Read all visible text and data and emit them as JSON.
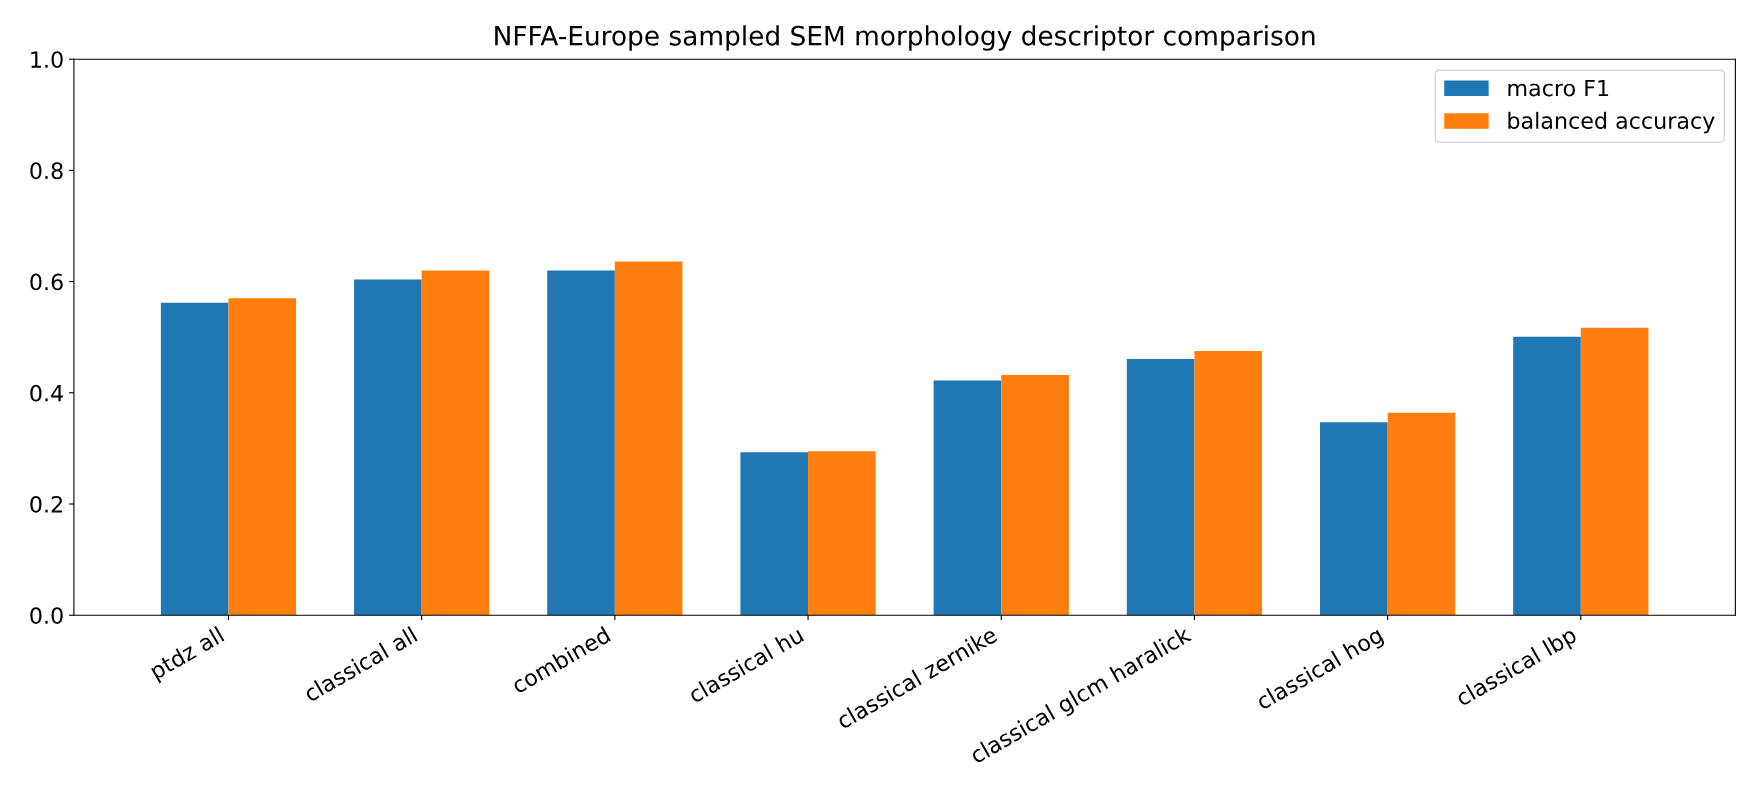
{
  "chart_data": {
    "type": "bar",
    "title": "NFFA-Europe sampled SEM morphology descriptor comparison",
    "categories": [
      "ptdz all",
      "classical all",
      "combined",
      "classical hu",
      "classical zernike",
      "classical glcm haralick",
      "classical hog",
      "classical lbp"
    ],
    "series": [
      {
        "name": "macro F1",
        "color": "#1f77b4",
        "values": [
          0.562,
          0.604,
          0.62,
          0.293,
          0.422,
          0.461,
          0.347,
          0.501
        ]
      },
      {
        "name": "balanced accuracy",
        "color": "#ff7f0e",
        "values": [
          0.57,
          0.62,
          0.636,
          0.295,
          0.432,
          0.475,
          0.364,
          0.517
        ]
      }
    ],
    "ylim": [
      0,
      1.0
    ],
    "yticks": [
      {
        "value": 0,
        "label": "0.0"
      },
      {
        "value": 0.2,
        "label": "0.2"
      },
      {
        "value": 0.4,
        "label": "0.4"
      },
      {
        "value": 0.6,
        "label": "0.6"
      },
      {
        "value": 0.8,
        "label": "0.8"
      },
      {
        "value": 1.0,
        "label": "1.0"
      }
    ],
    "grid": false,
    "legend": "top right"
  }
}
